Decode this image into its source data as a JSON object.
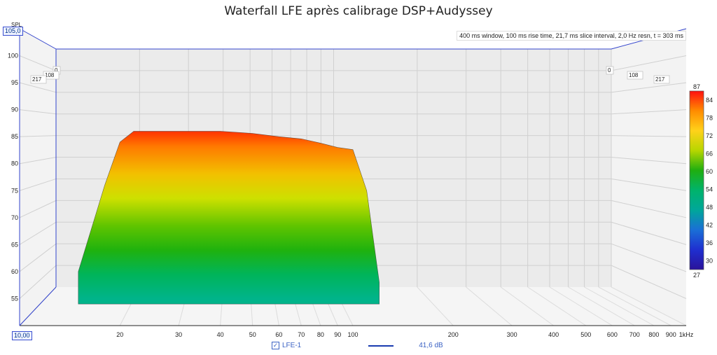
{
  "chart_data": {
    "type": "area",
    "subtype": "waterfall",
    "title": "Waterfall LFE après calibrage DSP+Audyssey",
    "info": "400 ms window, 100 ms rise time, 21,7 ms slice interval, 2,0 Hz resn, t = 303 ms",
    "ylabel": "SPL",
    "xunit": "kHz",
    "y_top_box": "105,0",
    "y_bottom_box": "10,00",
    "y_ticks": [
      "100",
      "95",
      "90",
      "85",
      "80",
      "75",
      "70",
      "65",
      "60",
      "55"
    ],
    "x_ticks": [
      "20",
      "30",
      "40",
      "50",
      "60",
      "70",
      "80",
      "90",
      "100",
      "200",
      "300",
      "400",
      "500",
      "600",
      "700",
      "800",
      "900",
      "1kHz"
    ],
    "x_scale": "log",
    "xlim": [
      10,
      1000
    ],
    "ylim": [
      50,
      105
    ],
    "depth_labels_left": [
      "0",
      "108",
      "217"
    ],
    "depth_labels_right": [
      "0",
      "108",
      "217"
    ],
    "colorbar": {
      "ticks": [
        "87",
        "84",
        "78",
        "72",
        "66",
        "60",
        "54",
        "48",
        "42",
        "36",
        "30",
        "27"
      ],
      "colors": [
        "#ff1010",
        "#ff8c00",
        "#ffd21a",
        "#b7d600",
        "#1fae10",
        "#00b36b",
        "#00a79a",
        "#1a6fd6",
        "#1f2fd0",
        "#2a129a"
      ]
    },
    "series": [
      {
        "name": "LFE-1",
        "smoothing": "41,6 dB",
        "color": "#1a3bb0",
        "x": [
          15,
          18,
          20,
          22,
          25,
          30,
          35,
          40,
          45,
          50,
          60,
          70,
          80,
          90,
          100,
          110,
          120
        ],
        "y": [
          60,
          76,
          84,
          86,
          86,
          86,
          86,
          86,
          85.8,
          85.6,
          85,
          84.6,
          83.8,
          83,
          82.6,
          75,
          58
        ]
      }
    ],
    "legend": [
      {
        "label": "LFE-1",
        "checked": true,
        "value": "41,6 dB"
      }
    ],
    "grid": true
  }
}
